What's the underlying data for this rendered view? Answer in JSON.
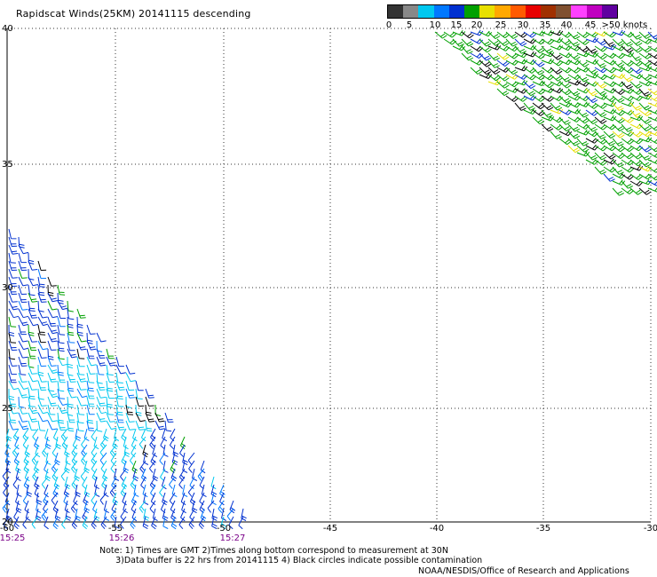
{
  "title": "Rapidscat Winds(25KM) 20141115 descending",
  "legend": {
    "colors": [
      "#333333",
      "#888888",
      "#00c8f0",
      "#0078ff",
      "#0030d0",
      "#00a000",
      "#e8e000",
      "#ffa800",
      "#ff5a00",
      "#e80000",
      "#a03000",
      "#805030",
      "#ff40ff",
      "#c000c0",
      "#6000a0"
    ],
    "labels": [
      "0",
      "5",
      "10",
      "15",
      "20",
      "25",
      "30",
      "35",
      "40",
      "45",
      ">50 knots"
    ]
  },
  "axes": {
    "x_ticks": [
      "-60",
      "-55",
      "-50",
      "-45",
      "-40",
      "-35",
      "-30"
    ],
    "y_ticks": [
      "40",
      "35",
      "30",
      "25",
      "20"
    ],
    "times": [
      "15:25",
      "15:26",
      "15:27"
    ]
  },
  "note": "Note: 1) Times are GMT 2)Times along bottom correspond to measurement at 30N\n      3)Data buffer is 22 hrs from 20141115 4) Black circles indicate possible contamination",
  "credit": "NOAA/NESDIS/Office of Research and Applications",
  "map": {
    "lon_range": [
      -60,
      -30
    ],
    "lat_range": [
      20,
      40
    ],
    "grid": true,
    "swaths": [
      {
        "name": "northeast",
        "region": "upper-right",
        "dominant_colors": [
          "#00a000",
          "#0030d0",
          "#000000",
          "#e8e000"
        ]
      },
      {
        "name": "southwest",
        "region": "lower-left",
        "dominant_colors": [
          "#0030d0",
          "#00c8f0",
          "#00a000",
          "#000000"
        ]
      }
    ]
  }
}
